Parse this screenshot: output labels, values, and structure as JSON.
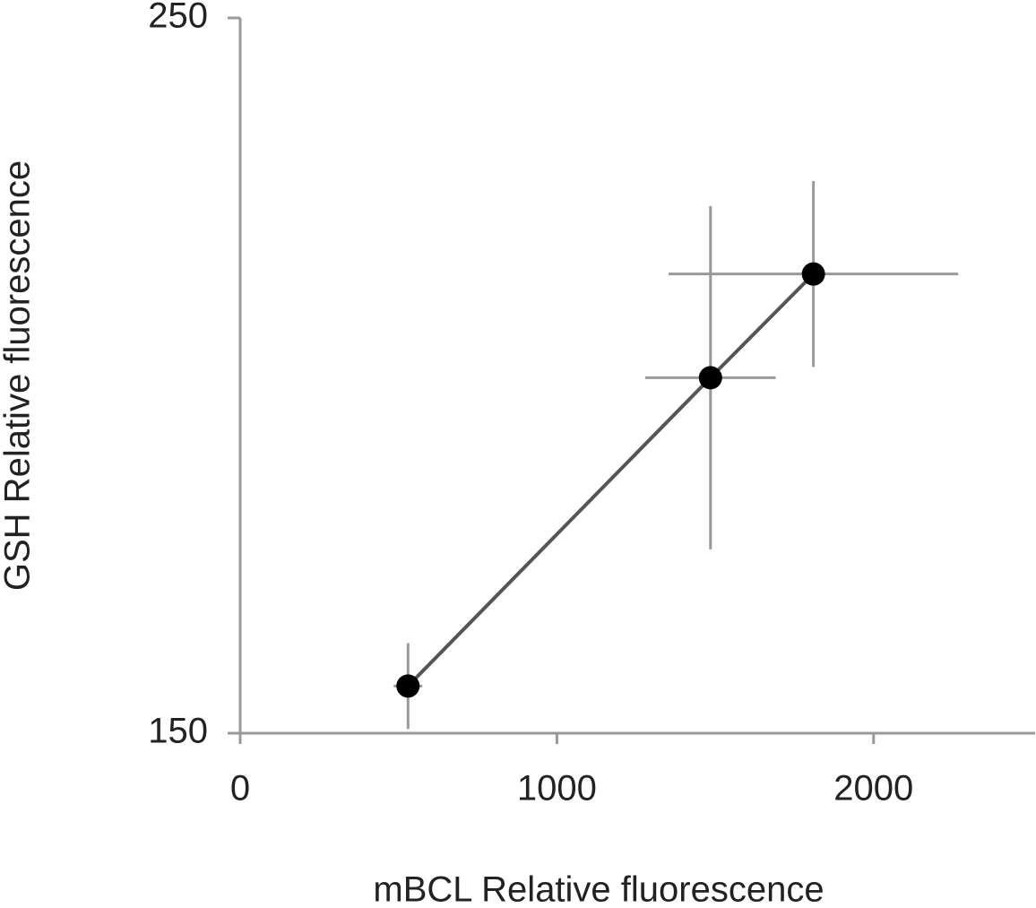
{
  "chart_data": {
    "type": "scatter",
    "x_label": "mBCL Relative fluorescence",
    "y_label": "GSH Relative fluorescence",
    "x": [
      530,
      1485,
      1810
    ],
    "values": [
      156.6,
      199.7,
      214.2
    ],
    "x_errors": [
      45,
      206,
      457
    ],
    "y_errors": [
      6,
      24,
      13
    ],
    "color": "#000000",
    "line_color": "#555555",
    "error_color": "#999999",
    "connect": true,
    "xlim": [
      0,
      2510
    ],
    "ylim": [
      150,
      250
    ],
    "xticks": [
      0,
      1000,
      2000
    ],
    "yticks": [
      150,
      250
    ]
  }
}
